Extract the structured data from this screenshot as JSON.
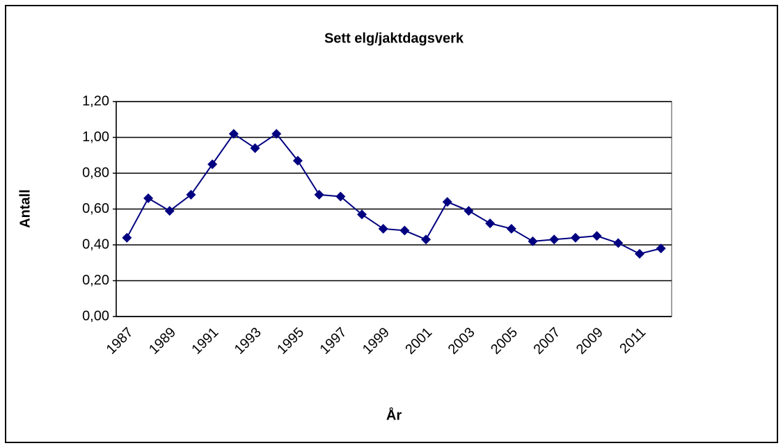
{
  "chart_data": {
    "type": "line",
    "title": "Sett elg/jaktdagsverk",
    "x_label": "År",
    "y_label": "Antall",
    "categories": [
      "1987",
      null,
      "1989",
      null,
      "1991",
      null,
      "1993",
      null,
      "1995",
      null,
      "1997",
      null,
      "1999",
      null,
      "2001",
      null,
      "2003",
      null,
      "2005",
      null,
      "2007",
      null,
      "2009",
      null,
      "2011",
      null
    ],
    "values": [
      0.44,
      0.66,
      0.59,
      0.68,
      0.85,
      1.02,
      0.94,
      1.02,
      0.87,
      0.68,
      0.67,
      0.57,
      0.49,
      0.48,
      0.43,
      0.64,
      0.59,
      0.52,
      0.49,
      0.42,
      0.43,
      0.44,
      0.45,
      0.41,
      0.35,
      0.38
    ],
    "color": "#000080",
    "ylim": [
      0,
      1.2
    ],
    "yticks": [
      {
        "value": 0,
        "label": "0,00"
      },
      {
        "value": 0.2,
        "label": "0,20"
      },
      {
        "value": 0.4,
        "label": "0,40"
      },
      {
        "value": 0.6,
        "label": "0,60"
      },
      {
        "value": 0.8,
        "label": "0,80"
      },
      {
        "value": 1.0,
        "label": "1,00"
      },
      {
        "value": 1.2,
        "label": "1,20"
      }
    ],
    "grid": true
  }
}
